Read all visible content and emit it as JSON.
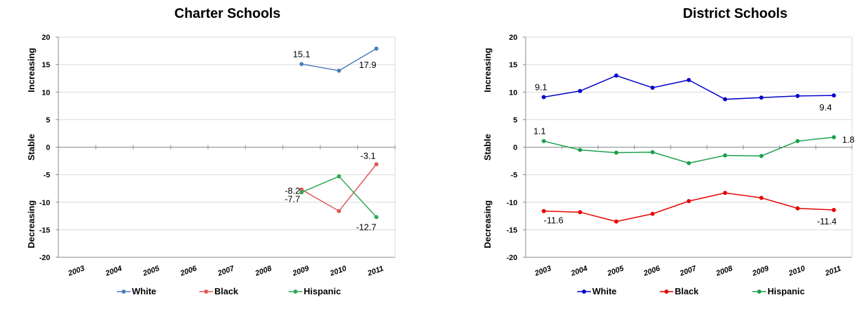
{
  "chart_data": [
    {
      "type": "line",
      "title": "Charter Schools",
      "categories": [
        "2003",
        "2004",
        "2005",
        "2006",
        "2007",
        "2008",
        "2009",
        "2010",
        "2011"
      ],
      "ylim": [
        -20,
        20
      ],
      "yticks": [
        20,
        15,
        10,
        5,
        0,
        -5,
        -10,
        -15,
        -20
      ],
      "band_labels": [
        "Increasing",
        "Stable",
        "Decreasing"
      ],
      "grid": true,
      "legend_position": "bottom",
      "series": [
        {
          "name": "White",
          "color": "#4a7ebb",
          "values": [
            null,
            null,
            null,
            null,
            null,
            null,
            15.1,
            13.9,
            17.9
          ]
        },
        {
          "name": "Black",
          "color": "#e05555",
          "values": [
            null,
            null,
            null,
            null,
            null,
            null,
            -7.7,
            -11.6,
            -3.1
          ]
        },
        {
          "name": "Hispanic",
          "color": "#2eaa55",
          "values": [
            null,
            null,
            null,
            null,
            null,
            null,
            -8.2,
            -5.3,
            -12.7
          ]
        }
      ],
      "data_labels": [
        {
          "text": "15.1"
        },
        {
          "text": "17.9"
        },
        {
          "text": "-3.1"
        },
        {
          "text": "-8.2"
        },
        {
          "text": "-7.7"
        },
        {
          "text": "-12.7"
        }
      ],
      "legend": [
        "White",
        "Black",
        "Hispanic"
      ]
    },
    {
      "type": "line",
      "title": "District Schools",
      "categories": [
        "2003",
        "2004",
        "2005",
        "2006",
        "2007",
        "2008",
        "2009",
        "2010",
        "2011"
      ],
      "ylim": [
        -20,
        20
      ],
      "yticks": [
        20,
        15,
        10,
        5,
        0,
        -5,
        -10,
        -15,
        -20
      ],
      "band_labels": [
        "Increasing",
        "Stable",
        "Decreasing"
      ],
      "grid": true,
      "legend_position": "bottom",
      "series": [
        {
          "name": "White",
          "color": "#0000cc",
          "values": [
            9.1,
            10.2,
            13.0,
            10.8,
            12.2,
            8.7,
            9.0,
            9.3,
            9.4
          ]
        },
        {
          "name": "Black",
          "color": "#e80000",
          "values": [
            -11.6,
            -11.8,
            -13.5,
            -12.1,
            -9.8,
            -8.3,
            -9.2,
            -11.1,
            -11.4
          ]
        },
        {
          "name": "Hispanic",
          "color": "#1aa04a",
          "values": [
            1.1,
            -0.5,
            -1.0,
            -0.9,
            -2.9,
            -1.5,
            -1.6,
            1.1,
            1.8
          ]
        }
      ],
      "data_labels": [
        {
          "text": "9.1"
        },
        {
          "text": "9.4"
        },
        {
          "text": "1.1"
        },
        {
          "text": "1.8"
        },
        {
          "text": "-11.6"
        },
        {
          "text": "-11.4"
        }
      ],
      "legend": [
        "White",
        "Black",
        "Hispanic"
      ]
    }
  ]
}
